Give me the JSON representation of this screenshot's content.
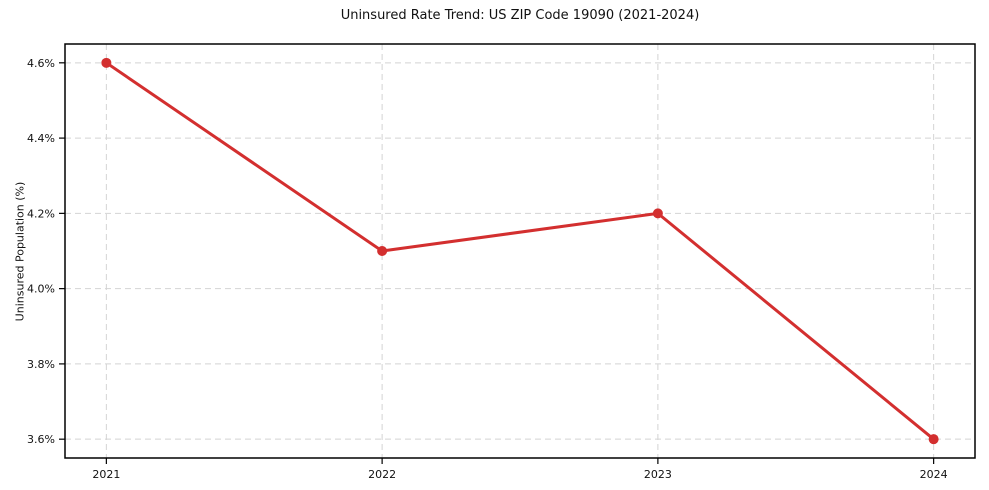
{
  "chart_data": {
    "type": "line",
    "title": "Uninsured Rate Trend: US ZIP Code 19090 (2021-2024)",
    "xlabel": "",
    "ylabel": "Uninsured Population (%)",
    "x": [
      2021,
      2022,
      2023,
      2024
    ],
    "values": [
      4.6,
      4.1,
      4.2,
      3.6
    ],
    "xlim": [
      2020.85,
      2024.15
    ],
    "ylim": [
      3.55,
      4.65
    ],
    "xticks": {
      "values": [
        2021,
        2022,
        2023,
        2024
      ],
      "labels": [
        "2021",
        "2022",
        "2023",
        "2024"
      ]
    },
    "yticks": {
      "values": [
        3.6,
        3.8,
        4.0,
        4.2,
        4.4,
        4.6
      ],
      "labels": [
        "3.6%",
        "3.8%",
        "4.0%",
        "4.2%",
        "4.4%",
        "4.6%"
      ]
    },
    "grid": true,
    "legend": "none",
    "line_color": "#d32f2f",
    "marker_color": "#d32f2f",
    "grid_color": "#d4d4d4",
    "axis_color": "#000000"
  }
}
